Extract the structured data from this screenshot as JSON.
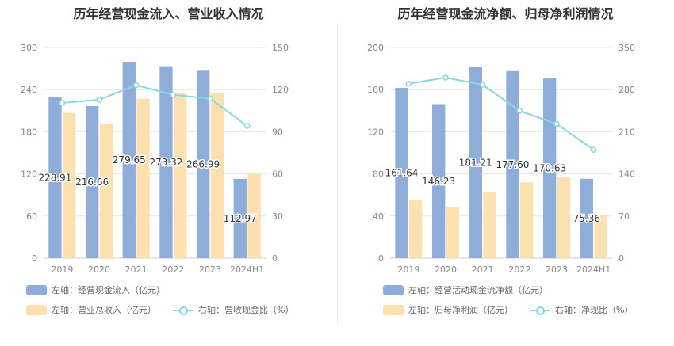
{
  "colors": {
    "inflow": "#8eadd8",
    "revenue": "#fde0b0",
    "ratio": "#88d8e0"
  },
  "chart_data": [
    {
      "type": "bar",
      "title": "历年经营现金流入、营业收入情况",
      "categories": [
        "2019",
        "2020",
        "2021",
        "2022",
        "2023",
        "2024H1"
      ],
      "left_axis": {
        "min": 0,
        "max": 300,
        "ticks": [
          "0",
          "60",
          "120",
          "180",
          "240",
          "300"
        ]
      },
      "right_axis": {
        "min": 0,
        "max": 150,
        "ticks": [
          "0",
          "30",
          "60",
          "90",
          "120",
          "150"
        ]
      },
      "series": [
        {
          "name": "左轴：经营现金流入（亿元）",
          "kind": "bar",
          "axis": "left",
          "values": [
            228.91,
            216.66,
            279.65,
            273.32,
            266.99,
            112.97
          ],
          "labels": [
            "228.91",
            "216.66",
            "279.65",
            "273.32",
            "266.99",
            "112.97"
          ]
        },
        {
          "name": "左轴：营业总收入（亿元）",
          "kind": "bar",
          "axis": "left",
          "values": [
            207,
            192,
            227,
            235,
            235,
            120
          ]
        },
        {
          "name": "右轴：营收现金比（%）",
          "kind": "line",
          "axis": "right",
          "values": [
            110.5,
            112.8,
            123.2,
            116.3,
            113.6,
            94.2
          ]
        }
      ]
    },
    {
      "type": "bar",
      "title": "历年经营现金流净额、归母净利润情况",
      "categories": [
        "2019",
        "2020",
        "2021",
        "2022",
        "2023",
        "2024H1"
      ],
      "left_axis": {
        "min": 0,
        "max": 200,
        "ticks": [
          "0",
          "40",
          "80",
          "120",
          "160",
          "200"
        ]
      },
      "right_axis": {
        "min": 0,
        "max": 350,
        "ticks": [
          "0",
          "70",
          "140",
          "210",
          "280",
          "350"
        ]
      },
      "series": [
        {
          "name": "左轴：经营活动现金流净额（亿元）",
          "kind": "bar",
          "axis": "left",
          "values": [
            161.64,
            146.23,
            181.21,
            177.6,
            170.63,
            75.36
          ],
          "labels": [
            "161.64",
            "146.23",
            "181.21",
            "177.60",
            "170.63",
            "75.36"
          ]
        },
        {
          "name": "左轴：归母净利润（亿元）",
          "kind": "bar",
          "axis": "left",
          "values": [
            55.5,
            48.5,
            63,
            72,
            76.5,
            41.5
          ]
        },
        {
          "name": "右轴：净现比（%）",
          "kind": "line",
          "axis": "right",
          "values": [
            290,
            300,
            288,
            245,
            223,
            180
          ]
        }
      ]
    }
  ]
}
